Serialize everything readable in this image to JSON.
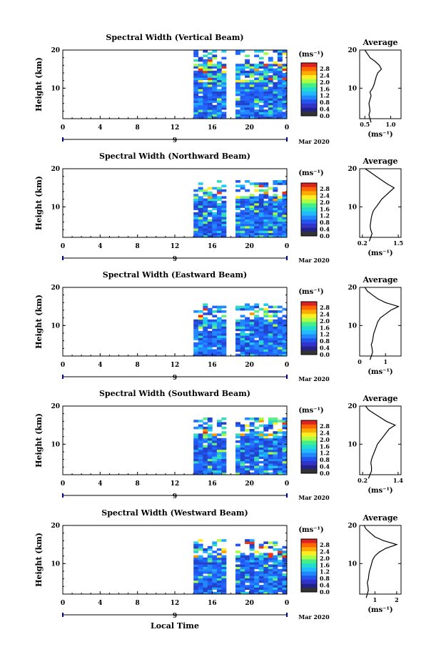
{
  "chart_data": [
    {
      "type": "heatmap",
      "title": "Spectral Width (Vertical Beam)",
      "ylabel": "Height (km)",
      "xticks": [
        "0",
        "4",
        "8",
        "12",
        "16",
        "20",
        "0"
      ],
      "yticks": [
        "20",
        "10"
      ],
      "day_label": "9",
      "date_label": "Mar 2020",
      "colorbar_unit": "(ms⁻¹)",
      "colorbar_ticks": [
        "2.8",
        "2.4",
        "2.0",
        "1.6",
        "1.2",
        "0.8",
        "0.4",
        "0.0"
      ],
      "average": {
        "title": "Average",
        "xticks": [
          "0.5",
          "1.0"
        ],
        "xlim": [
          0.4,
          1.2
        ],
        "xunit": "(ms⁻¹)",
        "profile": [
          [
            1,
            0.62
          ],
          [
            2,
            0.6
          ],
          [
            3,
            0.58
          ],
          [
            4,
            0.6
          ],
          [
            5,
            0.59
          ],
          [
            6,
            0.58
          ],
          [
            7,
            0.6
          ],
          [
            8,
            0.62
          ],
          [
            9,
            0.6
          ],
          [
            10,
            0.65
          ],
          [
            11,
            0.68
          ],
          [
            12,
            0.7
          ],
          [
            13,
            0.72
          ],
          [
            14,
            0.75
          ],
          [
            15,
            0.82
          ],
          [
            16,
            0.78
          ],
          [
            17,
            0.7
          ],
          [
            18,
            0.6
          ],
          [
            19,
            0.55
          ],
          [
            20,
            0.5
          ]
        ]
      }
    },
    {
      "type": "heatmap",
      "title": "Spectral Width (Northward Beam)",
      "ylabel": "Height (km)",
      "xticks": [
        "0",
        "4",
        "8",
        "12",
        "16",
        "20",
        "0"
      ],
      "yticks": [
        "20",
        "10"
      ],
      "day_label": "9",
      "date_label": "Mar 2020",
      "colorbar_unit": "(ms⁻¹)",
      "colorbar_ticks": [
        "2.8",
        "2.4",
        "2.0",
        "1.6",
        "1.2",
        "0.8",
        "0.4",
        "0.0"
      ],
      "average": {
        "title": "Average",
        "xticks": [
          "0.2",
          "1.5"
        ],
        "xlim": [
          0.1,
          1.6
        ],
        "xunit": "(ms⁻¹)",
        "profile": [
          [
            1,
            0.45
          ],
          [
            2,
            0.5
          ],
          [
            3,
            0.55
          ],
          [
            4,
            0.5
          ],
          [
            5,
            0.48
          ],
          [
            6,
            0.5
          ],
          [
            7,
            0.52
          ],
          [
            8,
            0.55
          ],
          [
            9,
            0.6
          ],
          [
            10,
            0.7
          ],
          [
            11,
            0.8
          ],
          [
            12,
            0.9
          ],
          [
            13,
            1.05
          ],
          [
            14,
            1.2
          ],
          [
            15,
            1.35
          ],
          [
            16,
            1.1
          ],
          [
            17,
            0.9
          ],
          [
            18,
            0.7
          ],
          [
            19,
            0.5
          ],
          [
            20,
            0.3
          ]
        ]
      }
    },
    {
      "type": "heatmap",
      "title": "Spectral Width (Eastward Beam)",
      "ylabel": "Height (km)",
      "xticks": [
        "0",
        "4",
        "8",
        "12",
        "16",
        "20",
        "0"
      ],
      "yticks": [
        "20",
        "10"
      ],
      "day_label": "9",
      "date_label": "Mar 2020",
      "colorbar_unit": "(ms⁻¹)",
      "colorbar_ticks": [
        "2.8",
        "2.4",
        "2.0",
        "1.6",
        "1.2",
        "0.8",
        "0.4",
        "0.0"
      ],
      "average": {
        "title": "Average",
        "xticks": [
          "0",
          "1"
        ],
        "xlim": [
          0,
          1.6
        ],
        "xunit": "(ms⁻¹)",
        "profile": [
          [
            1,
            0.4
          ],
          [
            2,
            0.45
          ],
          [
            3,
            0.5
          ],
          [
            4,
            0.48
          ],
          [
            5,
            0.45
          ],
          [
            6,
            0.5
          ],
          [
            7,
            0.52
          ],
          [
            8,
            0.55
          ],
          [
            9,
            0.6
          ],
          [
            10,
            0.65
          ],
          [
            11,
            0.7
          ],
          [
            12,
            0.8
          ],
          [
            13,
            1.0
          ],
          [
            14,
            1.2
          ],
          [
            15,
            1.5
          ],
          [
            16,
            1.0
          ],
          [
            17,
            0.7
          ],
          [
            18,
            0.5
          ],
          [
            19,
            0.3
          ],
          [
            20,
            0.2
          ]
        ]
      }
    },
    {
      "type": "heatmap",
      "title": "Spectral Width (Southward Beam)",
      "ylabel": "Height (km)",
      "xticks": [
        "0",
        "4",
        "8",
        "12",
        "16",
        "20",
        "0"
      ],
      "yticks": [
        "20",
        "10"
      ],
      "day_label": "9",
      "date_label": "Mar 2020",
      "colorbar_unit": "(ms⁻¹)",
      "colorbar_ticks": [
        "2.8",
        "2.4",
        "2.0",
        "1.6",
        "1.2",
        "0.8",
        "0.4",
        "0.0"
      ],
      "average": {
        "title": "Average",
        "xticks": [
          "0.2",
          "1.4"
        ],
        "xlim": [
          0.1,
          1.5
        ],
        "xunit": "(ms⁻¹)",
        "profile": [
          [
            1,
            0.4
          ],
          [
            2,
            0.45
          ],
          [
            3,
            0.5
          ],
          [
            4,
            0.5
          ],
          [
            5,
            0.48
          ],
          [
            6,
            0.5
          ],
          [
            7,
            0.55
          ],
          [
            8,
            0.6
          ],
          [
            9,
            0.65
          ],
          [
            10,
            0.7
          ],
          [
            11,
            0.8
          ],
          [
            12,
            0.9
          ],
          [
            13,
            1.0
          ],
          [
            14,
            1.1
          ],
          [
            15,
            1.3
          ],
          [
            16,
            1.0
          ],
          [
            17,
            0.8
          ],
          [
            18,
            0.6
          ],
          [
            19,
            0.4
          ],
          [
            20,
            0.3
          ]
        ]
      }
    },
    {
      "type": "heatmap",
      "title": "Spectral Width (Westward Beam)",
      "ylabel": "Height (km)",
      "xticks": [
        "0",
        "4",
        "8",
        "12",
        "16",
        "20",
        "0"
      ],
      "yticks": [
        "20",
        "10"
      ],
      "day_label": "9",
      "date_label": "Mar 2020",
      "colorbar_unit": "(ms⁻¹)",
      "colorbar_ticks": [
        "2.8",
        "2.4",
        "2.0",
        "1.6",
        "1.2",
        "0.8",
        "0.4",
        "0.0"
      ],
      "average": {
        "title": "Average",
        "xticks": [
          "1",
          "2"
        ],
        "xlim": [
          0.3,
          2.2
        ],
        "xunit": "(ms⁻¹)",
        "profile": [
          [
            1,
            0.6
          ],
          [
            2,
            0.65
          ],
          [
            3,
            0.7
          ],
          [
            4,
            0.68
          ],
          [
            5,
            0.65
          ],
          [
            6,
            0.7
          ],
          [
            7,
            0.72
          ],
          [
            8,
            0.75
          ],
          [
            9,
            0.8
          ],
          [
            10,
            0.85
          ],
          [
            11,
            0.9
          ],
          [
            12,
            1.0
          ],
          [
            13,
            1.2
          ],
          [
            14,
            1.5
          ],
          [
            15,
            2.0
          ],
          [
            16,
            1.4
          ],
          [
            17,
            1.0
          ],
          [
            18,
            0.8
          ],
          [
            19,
            0.6
          ],
          [
            20,
            0.5
          ]
        ]
      }
    }
  ],
  "shared": {
    "xlabel": "Local Time",
    "heatmap_xlim": [
      0,
      24
    ],
    "heatmap_ylim": [
      2,
      20
    ],
    "data_start_hour": 14,
    "gap_hours": [
      17.8,
      18.2
    ],
    "colorbar_colors": [
      "#dd2222",
      "#ff6600",
      "#ffaa00",
      "#ffee22",
      "#aaff44",
      "#44ee88",
      "#22ddcc",
      "#22bbff",
      "#2288ff",
      "#2255ee",
      "#3333cc",
      "#222288",
      "#333333"
    ]
  }
}
